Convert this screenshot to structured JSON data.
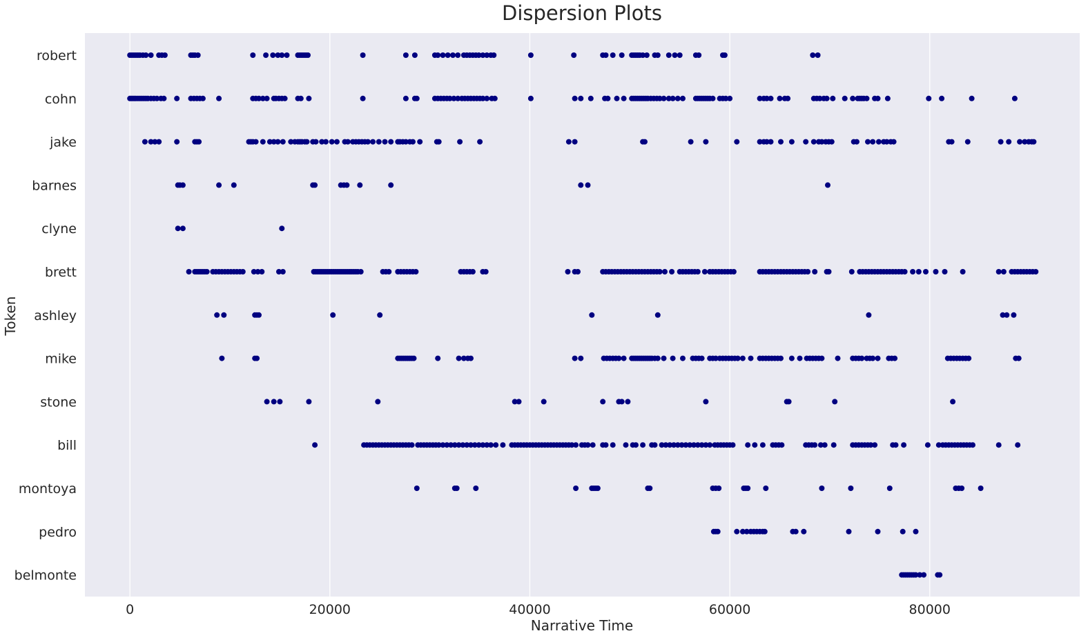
{
  "chart_data": {
    "type": "scatter",
    "title": "Dispersion Plots",
    "xlabel": "Narrative Time",
    "ylabel": "Token",
    "xlim": [
      -4500,
      95000
    ],
    "x_ticks": [
      0,
      20000,
      40000,
      60000,
      80000
    ],
    "x_tick_labels": [
      "0",
      "20000",
      "40000",
      "60000",
      "80000"
    ],
    "grid": "x-only",
    "background": "#eaeaf2",
    "marker_color": "#000080",
    "categories": [
      "robert",
      "cohn",
      "jake",
      "barnes",
      "clyne",
      "brett",
      "ashley",
      "mike",
      "stone",
      "bill",
      "montoya",
      "pedro",
      "belmonte"
    ],
    "series": [
      {
        "name": "robert",
        "x": [
          0,
          200,
          400,
          600,
          800,
          1000,
          1300,
          1600,
          2100,
          2900,
          3200,
          3500,
          6100,
          6300,
          6500,
          6800,
          12300,
          13600,
          14300,
          14800,
          15200,
          15700,
          16800,
          17000,
          17200,
          17400,
          17600,
          17800,
          23300,
          27600,
          28500,
          30500,
          30800,
          31300,
          31800,
          32300,
          32800,
          33400,
          33700,
          34000,
          34300,
          34600,
          34900,
          35300,
          35700,
          36100,
          36400,
          40100,
          44400,
          47300,
          47600,
          48300,
          49200,
          50200,
          50400,
          50600,
          50800,
          51000,
          51300,
          51700,
          52500,
          52800,
          53900,
          54500,
          55000,
          56600,
          56900,
          59300,
          59500,
          68300,
          68800
        ]
      },
      {
        "name": "cohn",
        "x": [
          0,
          150,
          300,
          450,
          600,
          800,
          1000,
          1200,
          1400,
          1600,
          1800,
          2100,
          2400,
          2700,
          3100,
          3400,
          4700,
          6100,
          6400,
          6700,
          7000,
          7300,
          8900,
          12300,
          12600,
          12900,
          13300,
          13700,
          14400,
          14600,
          14900,
          15200,
          15500,
          16800,
          17100,
          17900,
          23300,
          27600,
          28500,
          28700,
          30500,
          30800,
          31100,
          31400,
          31700,
          32000,
          32400,
          32800,
          33200,
          33500,
          33800,
          34100,
          34400,
          34700,
          35000,
          35300,
          35700,
          36200,
          36500,
          40100,
          44500,
          45100,
          46100,
          47500,
          47800,
          48700,
          49400,
          50200,
          50400,
          50600,
          50800,
          51000,
          51200,
          51400,
          51600,
          51800,
          52100,
          52400,
          52700,
          53000,
          53400,
          53900,
          54300,
          54800,
          55300,
          56600,
          56800,
          57000,
          57200,
          57400,
          57600,
          57800,
          58000,
          58300,
          59000,
          59300,
          59600,
          60000,
          63000,
          63400,
          63700,
          64100,
          65000,
          65500,
          65800,
          68400,
          68700,
          69000,
          69400,
          69700,
          70300,
          71500,
          72300,
          72800,
          73000,
          73200,
          73400,
          73700,
          74500,
          74800,
          75800,
          79900,
          81200,
          84200,
          88500
        ]
      },
      {
        "name": "jake",
        "x": [
          1500,
          2100,
          2500,
          2900,
          4700,
          6500,
          6700,
          6900,
          11900,
          12100,
          12300,
          12600,
          13300,
          14000,
          14400,
          14800,
          15300,
          16100,
          16500,
          16800,
          17000,
          17200,
          17500,
          17700,
          18300,
          18600,
          19200,
          19600,
          20200,
          20700,
          21500,
          21800,
          22300,
          22600,
          22900,
          23200,
          23500,
          23800,
          24300,
          24900,
          25500,
          26100,
          26800,
          27000,
          27300,
          27600,
          28000,
          28300,
          29000,
          30700,
          30900,
          33000,
          35000,
          43900,
          44500,
          51300,
          51500,
          56100,
          57600,
          60700,
          63000,
          63400,
          63700,
          64100,
          65100,
          66200,
          67600,
          68400,
          68900,
          69200,
          69600,
          69900,
          70200,
          72400,
          72700,
          73800,
          74300,
          74900,
          75400,
          75700,
          76100,
          76400,
          81900,
          82200,
          83800,
          87100,
          87900,
          89000,
          89500,
          89900,
          90200,
          90400
        ]
      },
      {
        "name": "barnes",
        "x": [
          4800,
          5000,
          5300,
          8900,
          10400,
          18300,
          18500,
          21100,
          21400,
          21700,
          23000,
          26100,
          45100,
          45800,
          69800
        ]
      },
      {
        "name": "clyne",
        "x": [
          4800,
          5300,
          15200
        ]
      },
      {
        "name": "brett",
        "x": [
          5900,
          6500,
          6700,
          6900,
          7100,
          7300,
          7500,
          7700,
          8300,
          8600,
          8900,
          9200,
          9500,
          9800,
          10100,
          10400,
          10700,
          11000,
          11300,
          12400,
          12800,
          13200,
          14900,
          15300,
          18400,
          18600,
          18800,
          19000,
          19200,
          19400,
          19600,
          19800,
          20000,
          20200,
          20400,
          20600,
          20800,
          21000,
          21200,
          21400,
          21600,
          21800,
          22000,
          22200,
          22400,
          22600,
          22800,
          23100,
          25300,
          25600,
          25900,
          26800,
          27100,
          27400,
          27700,
          28000,
          28300,
          28600,
          33100,
          33400,
          33700,
          34000,
          34300,
          35300,
          35600,
          43800,
          44500,
          44800,
          47300,
          47600,
          47900,
          48200,
          48500,
          48800,
          49100,
          49400,
          49700,
          50000,
          50300,
          50600,
          50900,
          51200,
          51500,
          51800,
          52100,
          52400,
          52700,
          53000,
          53500,
          54200,
          55000,
          55300,
          55600,
          55900,
          56200,
          56500,
          56800,
          57500,
          58000,
          58300,
          58600,
          58900,
          59200,
          59500,
          59800,
          60100,
          60400,
          63000,
          63300,
          63600,
          63900,
          64200,
          64500,
          64800,
          65100,
          65400,
          65700,
          66000,
          66300,
          66600,
          66900,
          67200,
          67500,
          67800,
          68500,
          69700,
          69900,
          72200,
          73000,
          73300,
          73600,
          73900,
          74200,
          74500,
          74800,
          75100,
          75400,
          75700,
          76000,
          76300,
          76600,
          76900,
          77200,
          77500,
          78300,
          78900,
          79600,
          80600,
          81500,
          83300,
          86900,
          87400,
          88200,
          88500,
          88800,
          89100,
          89400,
          89700,
          90000,
          90300,
          90600
        ]
      },
      {
        "name": "ashley",
        "x": [
          8700,
          9400,
          12500,
          12700,
          12900,
          20300,
          25000,
          46200,
          52800,
          73900,
          87300,
          87700,
          88400
        ]
      },
      {
        "name": "mike",
        "x": [
          9200,
          12500,
          12700,
          26800,
          27000,
          27200,
          27400,
          27600,
          27800,
          28000,
          28200,
          28400,
          30800,
          32900,
          33400,
          33800,
          34100,
          44500,
          45100,
          47400,
          47700,
          48000,
          48300,
          48600,
          48900,
          49400,
          50200,
          50400,
          50600,
          50800,
          51000,
          51200,
          51400,
          51600,
          51800,
          52000,
          52200,
          52500,
          52800,
          53400,
          54300,
          55300,
          56300,
          56600,
          56900,
          57200,
          58000,
          58300,
          58600,
          59000,
          59300,
          59600,
          59900,
          60200,
          60500,
          60800,
          61300,
          62100,
          63000,
          63300,
          63600,
          63900,
          64200,
          64500,
          64800,
          65100,
          66200,
          67000,
          67700,
          68000,
          68300,
          68600,
          68900,
          69200,
          70800,
          72300,
          72600,
          72900,
          73200,
          73700,
          74000,
          74300,
          74800,
          75900,
          76200,
          76500,
          81800,
          82100,
          82400,
          82700,
          83000,
          83300,
          83600,
          83900,
          88600,
          88900
        ]
      },
      {
        "name": "stone",
        "x": [
          13700,
          14400,
          15000,
          17900,
          24800,
          38500,
          38900,
          41400,
          47300,
          48900,
          49200,
          49800,
          57600,
          65700,
          65900,
          70500,
          82300
        ]
      },
      {
        "name": "bill",
        "x": [
          18500,
          23400,
          23700,
          24000,
          24300,
          24600,
          24900,
          25200,
          25500,
          25800,
          26100,
          26400,
          26700,
          27000,
          27300,
          27600,
          27900,
          28200,
          28800,
          29100,
          29400,
          29700,
          30000,
          30300,
          30600,
          30900,
          31300,
          31700,
          32100,
          32500,
          32900,
          33300,
          33700,
          34100,
          34500,
          34900,
          35300,
          35700,
          36100,
          36600,
          37300,
          38200,
          38500,
          38800,
          39100,
          39400,
          39700,
          40000,
          40300,
          40600,
          40900,
          41200,
          41500,
          41800,
          42100,
          42400,
          42700,
          43000,
          43300,
          43600,
          43900,
          44200,
          44600,
          45200,
          45500,
          45800,
          46300,
          47300,
          47600,
          48300,
          49600,
          50300,
          50600,
          51300,
          52200,
          52500,
          53200,
          53600,
          54000,
          54400,
          54800,
          55200,
          55600,
          56000,
          56400,
          56800,
          57200,
          57600,
          58000,
          58500,
          58800,
          59100,
          59400,
          59700,
          60000,
          60300,
          61800,
          62500,
          63300,
          64300,
          64600,
          64900,
          65200,
          67600,
          67900,
          68200,
          68500,
          69100,
          69500,
          70400,
          72300,
          72600,
          72900,
          73200,
          73500,
          73800,
          74100,
          74500,
          76300,
          76600,
          77400,
          79800,
          80900,
          81300,
          81600,
          81900,
          82200,
          82500,
          82800,
          83100,
          83400,
          83700,
          84000,
          84300,
          86900,
          88800
        ]
      },
      {
        "name": "montoya",
        "x": [
          28700,
          32500,
          32700,
          34600,
          44600,
          46200,
          46400,
          46600,
          46800,
          51800,
          52000,
          58300,
          58600,
          58900,
          61400,
          61600,
          61800,
          63600,
          69200,
          72100,
          76000,
          82600,
          82900,
          83200,
          85100
        ]
      },
      {
        "name": "pedro",
        "x": [
          58400,
          58600,
          58800,
          60700,
          61300,
          61700,
          62100,
          62400,
          62700,
          63000,
          63300,
          63500,
          66300,
          66600,
          67400,
          71900,
          74800,
          77300,
          78600
        ]
      },
      {
        "name": "belmonte",
        "x": [
          77200,
          77400,
          77600,
          77800,
          78000,
          78200,
          78400,
          78600,
          79000,
          79400,
          80800,
          81000
        ]
      }
    ]
  }
}
